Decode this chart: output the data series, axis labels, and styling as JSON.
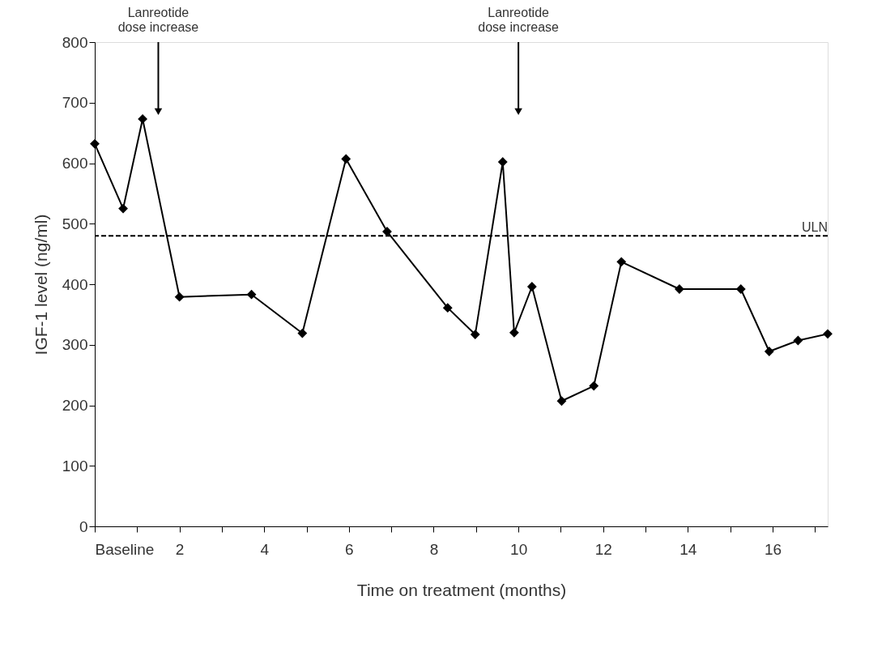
{
  "chart_data": {
    "type": "line",
    "xlabel": "Time on treatment (months)",
    "ylabel": "IGF-1 level (ng/ml)",
    "x": [
      0,
      0.67,
      1.13,
      2.0,
      3.7,
      4.9,
      5.93,
      6.9,
      8.33,
      8.98,
      9.63,
      9.9,
      10.32,
      11.02,
      11.78,
      12.43,
      13.8,
      15.25,
      15.92,
      16.6,
      17.3
    ],
    "series": [
      {
        "color": "#000000",
        "values": [
          632,
          525,
          673,
          379,
          383,
          319,
          607,
          487,
          361,
          317,
          602,
          320,
          396,
          207,
          232,
          437,
          392,
          392,
          289,
          307,
          318
        ]
      }
    ],
    "xlim": [
      0,
      17.3
    ],
    "xticks": [
      {
        "value": 0,
        "label": "Baseline"
      },
      {
        "value": 1,
        "label": null
      },
      2,
      {
        "value": 3,
        "label": null
      },
      4,
      {
        "value": 5,
        "label": null
      },
      6,
      {
        "value": 7,
        "label": null
      },
      8,
      {
        "value": 9,
        "label": null
      },
      10,
      {
        "value": 11,
        "label": null
      },
      12,
      {
        "value": 13,
        "label": null
      },
      14,
      {
        "value": 15,
        "label": null
      },
      16,
      {
        "value": 17,
        "label": null
      }
    ],
    "ylim": [
      0,
      800
    ],
    "yticks": [
      0,
      100,
      200,
      300,
      400,
      500,
      600,
      700,
      800
    ],
    "ref_lines": [
      {
        "axis": "y",
        "value": 480,
        "label": "ULN",
        "color": "#000000",
        "line_style": "dashed"
      }
    ],
    "annotations": [
      {
        "text": "Lanreotide\ndose increase",
        "x": 1.5,
        "y": 685
      },
      {
        "text": "Lanreotide\ndose increase",
        "x": 10.0,
        "y": 685
      }
    ],
    "marker": "diamond",
    "line_style": "solid",
    "grid": false
  }
}
